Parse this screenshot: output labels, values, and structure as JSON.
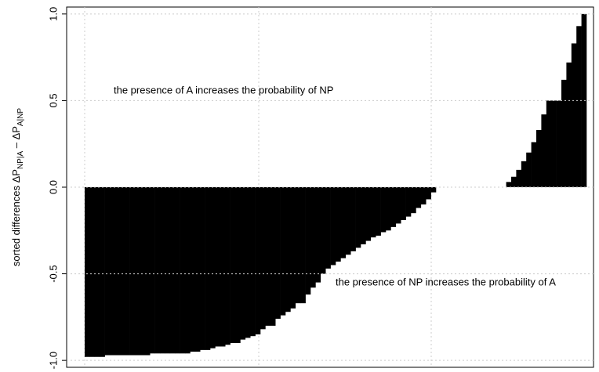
{
  "chart_data": {
    "type": "bar",
    "ylabel": [
      "sorted differences ΔP",
      "NP|A",
      " – ΔP",
      "A|NP"
    ],
    "annotations": [
      "the presence of A increases the probability of NP",
      "the presence of NP increases the probability of A"
    ],
    "color": "#000000",
    "grid": true,
    "ylim": [
      -1.04,
      1.04
    ],
    "yticks": [
      {
        "value": -1,
        "label": "-1.0"
      },
      {
        "value": -0.5,
        "label": "-0.5"
      },
      {
        "value": 0,
        "label": "0.0"
      },
      {
        "value": 0.5,
        "label": "0.5"
      },
      {
        "value": 1,
        "label": "1.0"
      }
    ],
    "values": [
      -0.98,
      -0.98,
      -0.98,
      -0.98,
      -0.97,
      -0.97,
      -0.97,
      -0.97,
      -0.97,
      -0.97,
      -0.97,
      -0.97,
      -0.97,
      -0.96,
      -0.96,
      -0.96,
      -0.96,
      -0.96,
      -0.96,
      -0.96,
      -0.96,
      -0.95,
      -0.95,
      -0.94,
      -0.94,
      -0.93,
      -0.92,
      -0.92,
      -0.91,
      -0.9,
      -0.9,
      -0.88,
      -0.87,
      -0.86,
      -0.85,
      -0.82,
      -0.8,
      -0.8,
      -0.76,
      -0.74,
      -0.72,
      -0.7,
      -0.67,
      -0.67,
      -0.62,
      -0.58,
      -0.55,
      -0.5,
      -0.47,
      -0.45,
      -0.43,
      -0.41,
      -0.39,
      -0.37,
      -0.35,
      -0.33,
      -0.31,
      -0.29,
      -0.28,
      -0.26,
      -0.25,
      -0.23,
      -0.21,
      -0.19,
      -0.17,
      -0.15,
      -0.12,
      -0.1,
      -0.07,
      -0.03,
      0,
      0,
      0,
      0,
      0,
      0,
      0,
      0,
      0,
      0,
      0,
      0,
      0,
      0,
      0.03,
      0.06,
      0.1,
      0.15,
      0.2,
      0.26,
      0.33,
      0.42,
      0.5,
      0.5,
      0.5,
      0.62,
      0.72,
      0.83,
      0.93,
      1.0
    ]
  }
}
